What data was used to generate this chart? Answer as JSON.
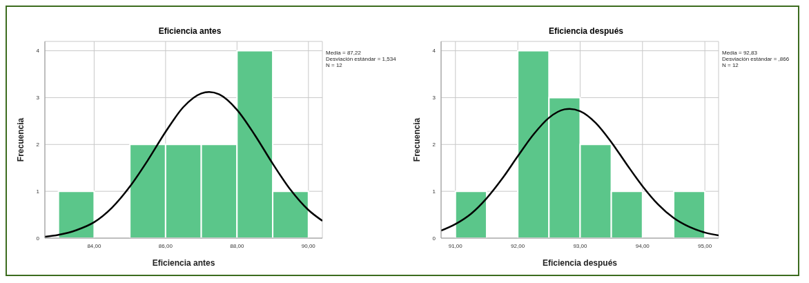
{
  "chart_data": [
    {
      "type": "histogram",
      "title": "Eficiencia antes",
      "xlabel": "Eficiencia antes",
      "ylabel": "Frecuencia",
      "bins": [
        83,
        84,
        85,
        86,
        87,
        88,
        89,
        90
      ],
      "series": [
        {
          "color": "#5bc68a",
          "values": [
            1,
            0,
            2,
            2,
            2,
            4,
            1
          ]
        },
        {
          "type": "line",
          "color": "#000000",
          "x": [
            82.62,
            83,
            83.5,
            84,
            84.5,
            85,
            85.5,
            86,
            86.5,
            87,
            87.22,
            87.5,
            88,
            88.5,
            89,
            89.5,
            90,
            90.39
          ],
          "values": [
            0.03,
            0.07,
            0.17,
            0.34,
            0.65,
            1.1,
            1.66,
            2.27,
            2.8,
            3.09,
            3.12,
            3.07,
            2.74,
            2.2,
            1.59,
            1.03,
            0.6,
            0.37
          ]
        }
      ],
      "xlim": [
        82.62,
        90.39
      ],
      "xticks": [
        {
          "value": 84,
          "label": "84,00"
        },
        {
          "value": 86,
          "label": "86,00"
        },
        {
          "value": 88,
          "label": "88,00"
        },
        {
          "value": 90,
          "label": "90,00"
        }
      ],
      "ylim": [
        0,
        4.2
      ],
      "yticks": [
        0,
        1,
        2,
        3,
        4
      ],
      "grid": true,
      "annotations": [
        "Media = 87,22",
        "Desviación estándar = 1,534",
        "N = 12"
      ]
    },
    {
      "type": "histogram",
      "title": "Eficiencia después",
      "xlabel": "Eficiencia después",
      "ylabel": "Frecuencia",
      "bins": [
        91,
        91.5,
        92,
        92.5,
        93,
        93.5,
        94,
        94.5,
        95
      ],
      "series": [
        {
          "color": "#5bc68a",
          "values": [
            1,
            0,
            4,
            3,
            2,
            1,
            0,
            1
          ]
        },
        {
          "type": "line",
          "color": "#000000",
          "x": [
            90.77,
            91,
            91.25,
            91.5,
            91.75,
            92,
            92.25,
            92.5,
            92.75,
            92.83,
            93,
            93.25,
            93.5,
            93.75,
            94,
            94.25,
            94.5,
            94.75,
            95,
            95.22
          ],
          "values": [
            0.16,
            0.3,
            0.52,
            0.85,
            1.27,
            1.75,
            2.21,
            2.57,
            2.75,
            2.76,
            2.71,
            2.46,
            2.05,
            1.57,
            1.11,
            0.72,
            0.43,
            0.24,
            0.12,
            0.06
          ]
        }
      ],
      "xlim": [
        90.77,
        95.22
      ],
      "xticks": [
        {
          "value": 91,
          "label": "91,00"
        },
        {
          "value": 92,
          "label": "92,00"
        },
        {
          "value": 93,
          "label": "93,00"
        },
        {
          "value": 94,
          "label": "94,00"
        },
        {
          "value": 95,
          "label": "95,00"
        }
      ],
      "ylim": [
        0,
        4.2
      ],
      "yticks": [
        0,
        1,
        2,
        3,
        4
      ],
      "grid": true,
      "annotations": [
        "Media = 92,83",
        "Desviación estándar = ,866",
        "N = 12"
      ]
    }
  ]
}
